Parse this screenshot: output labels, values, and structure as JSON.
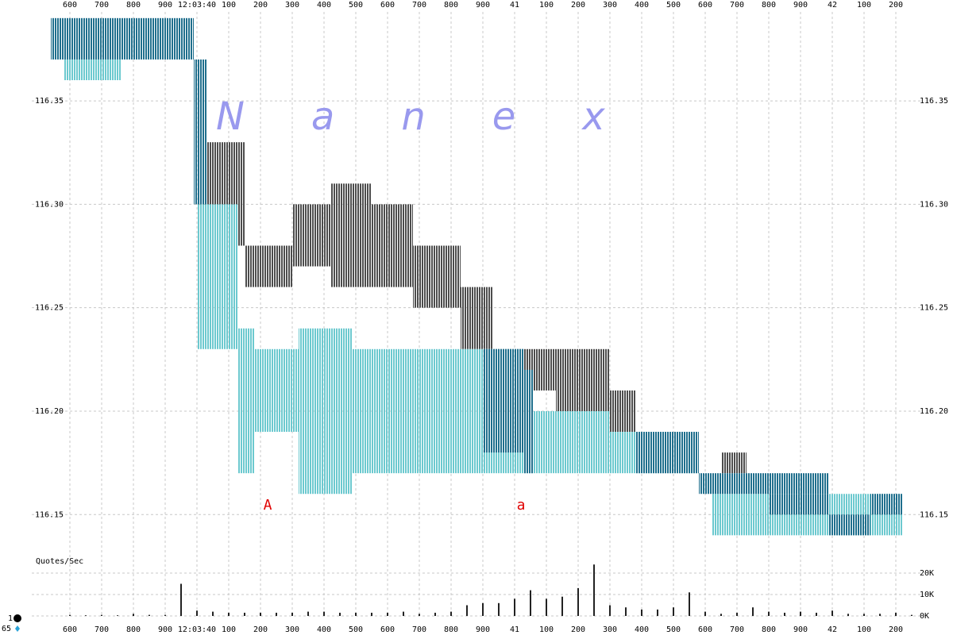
{
  "chart_data": [
    {
      "type": "range-bar",
      "watermark": "Nanex",
      "xlim": [
        39.48,
        42.28
      ],
      "ylim": [
        116.134,
        116.393
      ],
      "grid": true,
      "xticks": [
        {
          "value": 39.6,
          "label": "600"
        },
        {
          "value": 39.7,
          "label": "700"
        },
        {
          "value": 39.8,
          "label": "800"
        },
        {
          "value": 39.9,
          "label": "900"
        },
        {
          "value": 40.0,
          "label": "12:03:40"
        },
        {
          "value": 40.1,
          "label": "100"
        },
        {
          "value": 40.2,
          "label": "200"
        },
        {
          "value": 40.3,
          "label": "300"
        },
        {
          "value": 40.4,
          "label": "400"
        },
        {
          "value": 40.5,
          "label": "500"
        },
        {
          "value": 40.6,
          "label": "600"
        },
        {
          "value": 40.7,
          "label": "700"
        },
        {
          "value": 40.8,
          "label": "800"
        },
        {
          "value": 40.9,
          "label": "900"
        },
        {
          "value": 41.0,
          "label": "41"
        },
        {
          "value": 41.1,
          "label": "100"
        },
        {
          "value": 41.2,
          "label": "200"
        },
        {
          "value": 41.3,
          "label": "300"
        },
        {
          "value": 41.4,
          "label": "400"
        },
        {
          "value": 41.5,
          "label": "500"
        },
        {
          "value": 41.6,
          "label": "600"
        },
        {
          "value": 41.7,
          "label": "700"
        },
        {
          "value": 41.8,
          "label": "800"
        },
        {
          "value": 41.9,
          "label": "900"
        },
        {
          "value": 42.0,
          "label": "42"
        },
        {
          "value": 42.1,
          "label": "100"
        },
        {
          "value": 42.2,
          "label": "200"
        }
      ],
      "yticks": [
        116.15,
        {
          "value": 116.2,
          "label": "116.20"
        },
        116.25,
        {
          "value": 116.3,
          "label": "116.30"
        },
        116.35
      ],
      "annotations": [
        "A",
        "a"
      ],
      "series": [
        {
          "color": "#4d4d4d",
          "x": [
            40.0,
            40.13,
            40.15,
            40.3,
            40.42,
            40.55,
            40.68,
            40.83,
            40.93,
            41.13,
            41.3,
            41.65
          ],
          "x_end": [
            40.13,
            40.15,
            40.3,
            40.42,
            40.55,
            40.68,
            40.83,
            40.93,
            41.13,
            41.3,
            41.38,
            41.73
          ],
          "low": [
            116.29,
            116.28,
            116.26,
            116.27,
            116.26,
            116.26,
            116.25,
            116.23,
            116.21,
            116.2,
            116.19,
            116.17
          ],
          "high": [
            116.33,
            116.33,
            116.28,
            116.3,
            116.31,
            116.3,
            116.28,
            116.26,
            116.23,
            116.23,
            116.21,
            116.18
          ]
        },
        {
          "color": "#6cc9cf",
          "x": [
            39.58,
            40.0,
            40.13,
            40.18,
            40.32,
            40.49,
            40.86,
            41.03,
            41.3,
            41.62,
            41.99
          ],
          "x_end": [
            39.76,
            40.13,
            40.18,
            40.32,
            40.49,
            40.86,
            41.03,
            41.3,
            41.58,
            41.99,
            42.22
          ],
          "low": [
            116.36,
            116.23,
            116.17,
            116.19,
            116.16,
            116.17,
            116.17,
            116.17,
            116.17,
            116.14,
            116.14
          ],
          "high": [
            116.37,
            116.3,
            116.24,
            116.23,
            116.24,
            116.23,
            116.23,
            116.2,
            116.19,
            116.16,
            116.16
          ]
        },
        {
          "color": "#1f6f8d",
          "x": [
            39.54,
            39.99,
            40.9,
            41.03,
            41.38,
            41.58,
            41.8,
            41.99,
            42.12
          ],
          "x_end": [
            39.99,
            40.03,
            41.03,
            41.06,
            41.58,
            41.99,
            41.99,
            42.12,
            42.22
          ],
          "low": [
            116.37,
            116.3,
            116.18,
            116.17,
            116.17,
            116.16,
            116.15,
            116.14,
            116.15
          ],
          "high": [
            116.39,
            116.37,
            116.23,
            116.22,
            116.19,
            116.17,
            116.16,
            116.15,
            116.16
          ]
        }
      ]
    },
    {
      "type": "bar",
      "ylabel": "Quotes/Sec",
      "ylim": [
        0,
        30000
      ],
      "yticks": [
        {
          "value": 0,
          "label": "0K"
        },
        {
          "value": 10000,
          "label": "10K"
        },
        {
          "value": 20000,
          "label": "20K"
        }
      ],
      "color": "#222222",
      "legend": [
        "1",
        "65"
      ],
      "x": [
        39.55,
        39.6,
        39.65,
        39.7,
        39.75,
        39.8,
        39.85,
        39.9,
        39.95,
        40.0,
        40.05,
        40.1,
        40.15,
        40.2,
        40.25,
        40.3,
        40.35,
        40.4,
        40.45,
        40.5,
        40.55,
        40.6,
        40.65,
        40.7,
        40.75,
        40.8,
        40.85,
        40.9,
        40.95,
        41.0,
        41.05,
        41.1,
        41.15,
        41.2,
        41.25,
        41.3,
        41.35,
        41.4,
        41.45,
        41.5,
        41.55,
        41.6,
        41.65,
        41.7,
        41.75,
        41.8,
        41.85,
        41.9,
        41.95,
        42.0,
        42.05,
        42.1,
        42.15,
        42.2,
        42.25
      ],
      "values": [
        0,
        500,
        300,
        500,
        300,
        1000,
        500,
        500,
        15000,
        2500,
        2000,
        1500,
        1500,
        1500,
        1500,
        1500,
        2000,
        2000,
        1500,
        1500,
        1500,
        1500,
        2000,
        1000,
        1500,
        2000,
        5000,
        6000,
        6000,
        8000,
        12000,
        8000,
        9000,
        13000,
        24000,
        5000,
        4000,
        3000,
        3000,
        4000,
        11000,
        2000,
        1000,
        1500,
        4000,
        2000,
        1500,
        2000,
        1500,
        2500,
        1000,
        1000,
        1000,
        1500,
        500
      ]
    }
  ]
}
